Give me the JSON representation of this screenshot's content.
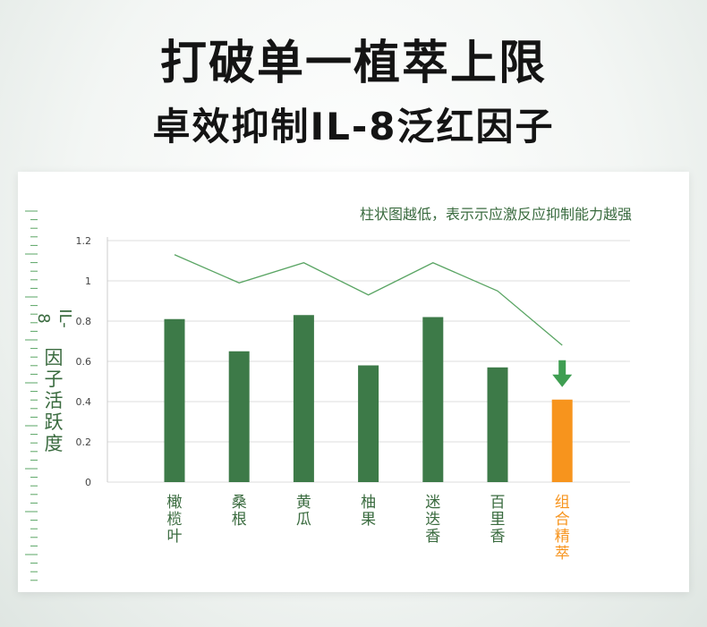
{
  "headline": {
    "title": "打破单一植萃上限",
    "subtitle": "卓效抑制IL-8泛红因子"
  },
  "chart_note": "柱状图越低，表示示应激反应抑制能力越强",
  "colors": {
    "bar": "#3d7a48",
    "highlight": "#f7941d",
    "line": "#5aa564",
    "arrow": "#3f9e52",
    "axis_text": "#444444",
    "green_text": "#3a6b3f"
  },
  "chart_data": {
    "type": "bar",
    "ylabel": "IL-8因子活跃度",
    "ylim": [
      0,
      1.2
    ],
    "yticks": [
      "1.2",
      "1",
      "0.8",
      "0.6",
      "0.4",
      "0.2",
      "0"
    ],
    "categories": [
      "橄榄叶",
      "桑根",
      "黄瓜",
      "柚果",
      "迷迭香",
      "百里香",
      "组合精萃"
    ],
    "values": [
      0.81,
      0.65,
      0.83,
      0.58,
      0.82,
      0.57,
      0.41
    ],
    "highlight_index": 6,
    "trend_line": [
      1.13,
      0.99,
      1.09,
      0.93,
      1.09,
      0.95,
      0.68
    ],
    "grid": true,
    "arrow_icon": "down-arrow-icon"
  }
}
